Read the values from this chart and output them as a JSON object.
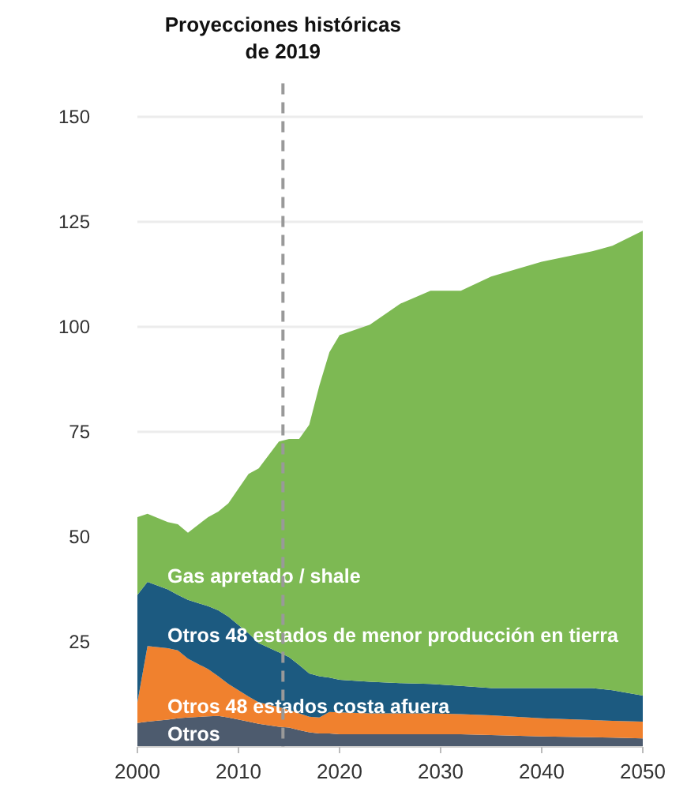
{
  "chart_data": {
    "type": "area",
    "stacked": true,
    "x": [
      2000,
      2001,
      2003,
      2004,
      2005,
      2007,
      2008,
      2009,
      2011,
      2012,
      2014,
      2015,
      2016,
      2017,
      2018,
      2019,
      2020,
      2023,
      2026,
      2029,
      2032,
      2035,
      2040,
      2045,
      2047,
      2050
    ],
    "series": [
      {
        "name": "Otros",
        "color": "#4d5b6e",
        "values": [
          5.7,
          6,
          6.5,
          6.8,
          7,
          7.3,
          7.4,
          7,
          6,
          5.5,
          4.8,
          4.6,
          4,
          3.5,
          3.2,
          3.2,
          3,
          3,
          3,
          3,
          3,
          2.8,
          2.5,
          2.3,
          2.2,
          2
        ]
      },
      {
        "name": "Otros 48 estados costa afuera",
        "color": "#f0812e",
        "values": [
          4.9,
          18,
          17,
          16.2,
          14,
          11.2,
          9.4,
          8,
          6,
          5.1,
          4.7,
          4.2,
          4,
          3.7,
          3.8,
          5.1,
          5.2,
          5,
          5,
          5,
          4.8,
          4.7,
          4.3,
          4.1,
          4,
          4
        ]
      },
      {
        "name": "Otros 48 estados de menor producción en tierra",
        "color": "#1c5a80",
        "values": [
          25.6,
          15.3,
          14,
          13.2,
          14,
          15,
          15.7,
          16,
          15,
          14.1,
          13,
          12.6,
          11.5,
          10.3,
          9.8,
          8.2,
          7.8,
          7.5,
          7.2,
          7,
          6.7,
          6.5,
          7.2,
          7.6,
          7.3,
          6.2
        ]
      },
      {
        "name": "Gas apretado / shale",
        "color": "#7db953",
        "values": [
          18.5,
          16.2,
          16,
          16.8,
          16,
          21.2,
          23.5,
          27,
          38,
          41.6,
          50.2,
          51.9,
          53.8,
          59.2,
          69.2,
          77.5,
          82,
          85,
          90.3,
          93.6,
          94.1,
          98,
          101.5,
          104,
          105.8,
          110.7
        ]
      }
    ],
    "xlim": [
      2000,
      2050
    ],
    "xticks": [
      2000,
      2010,
      2020,
      2030,
      2040,
      2050
    ],
    "ylim": [
      0,
      158
    ],
    "yticks": [
      25,
      50,
      75,
      100,
      125,
      150
    ],
    "grid": "y",
    "ref_lines": [
      {
        "axis": "x",
        "value": 2014.4,
        "label": "Proyecciones históricas de 2019",
        "color": "#999999",
        "line_style": "dashed"
      }
    ]
  }
}
